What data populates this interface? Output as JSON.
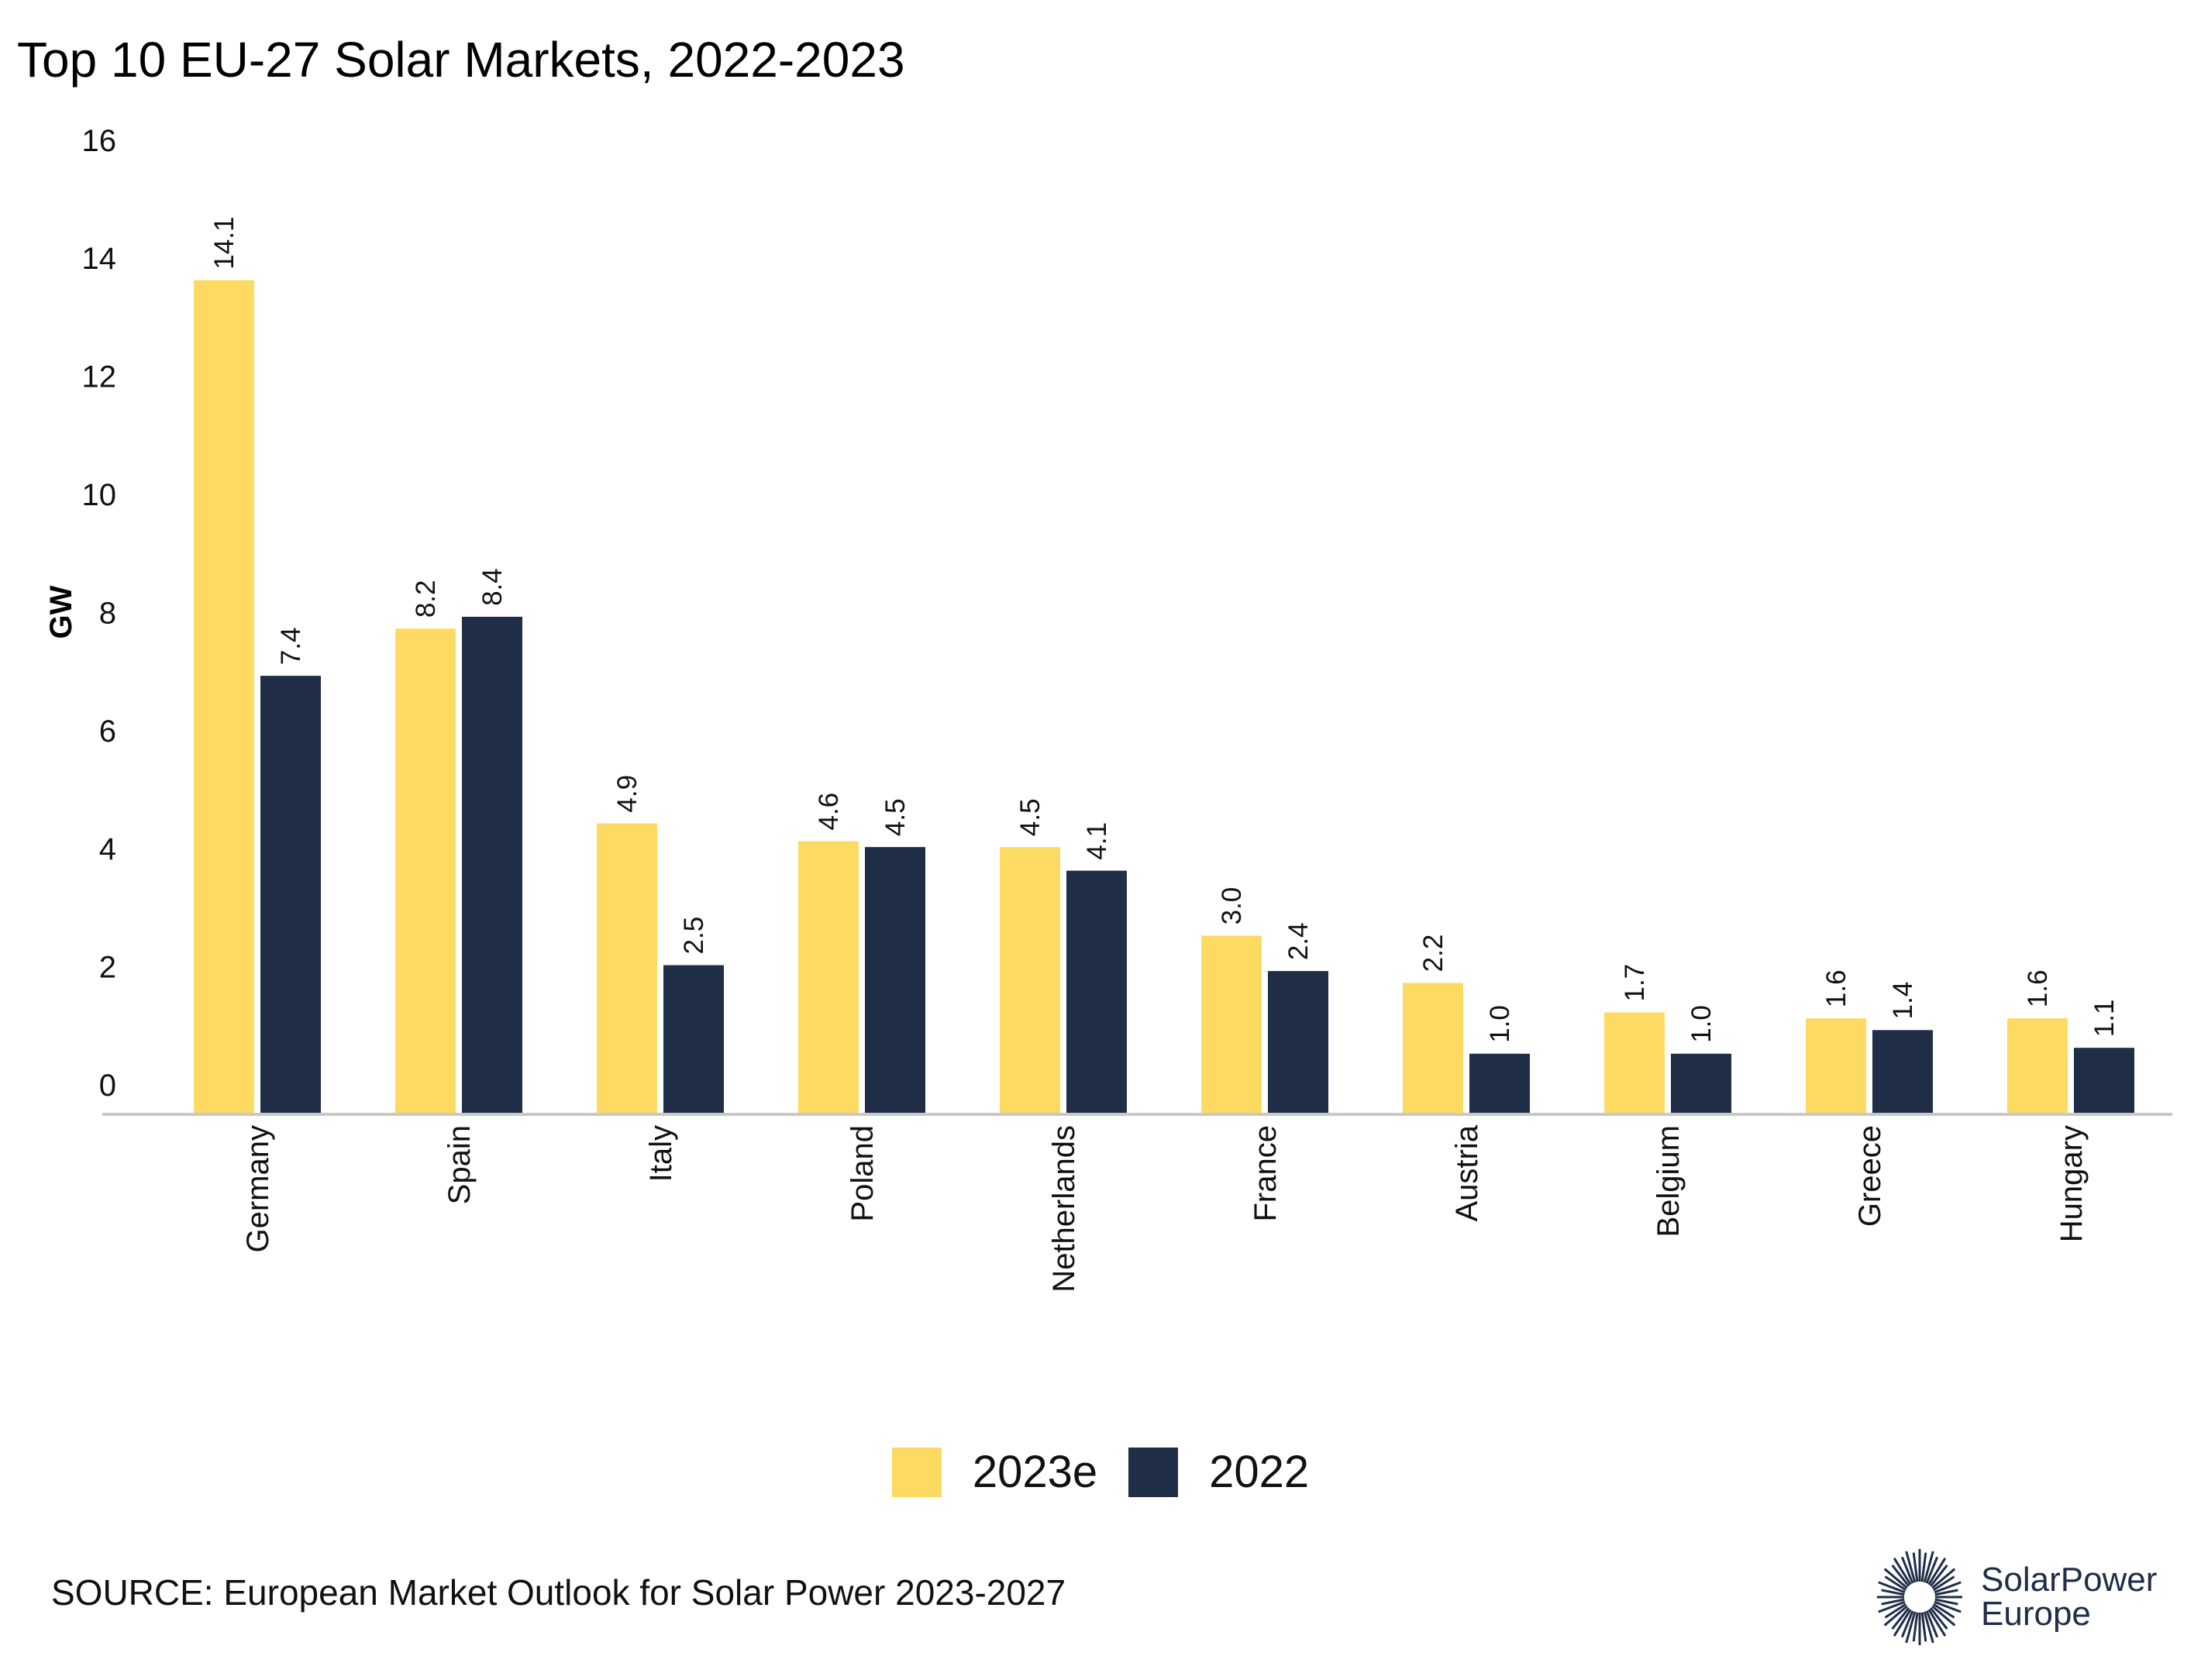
{
  "chart_data": {
    "type": "bar",
    "title": "Top 10 EU-27 Solar Markets, 2022-2023",
    "xlabel": "",
    "ylabel": "GW",
    "ylim": [
      0,
      16
    ],
    "yticks": [
      0,
      2,
      4,
      6,
      8,
      10,
      12,
      14,
      16
    ],
    "grid": false,
    "legend_position": "bottom",
    "categories": [
      "Germany",
      "Spain",
      "Italy",
      "Poland",
      "Netherlands",
      "France",
      "Austria",
      "Belgium",
      "Greece",
      "Hungary"
    ],
    "series": [
      {
        "name": "2023e",
        "color": "#fddb63",
        "values": [
          14.1,
          8.2,
          4.9,
          4.6,
          4.5,
          3.0,
          2.2,
          1.7,
          1.6,
          1.6
        ]
      },
      {
        "name": "2022",
        "color": "#1f2d47",
        "values": [
          7.4,
          8.4,
          2.5,
          4.5,
          4.1,
          2.4,
          1.0,
          1.0,
          1.4,
          1.1
        ]
      }
    ]
  },
  "source": "SOURCE: European Market Outlook for Solar Power 2023-2027",
  "logo": {
    "line1": "SolarPower",
    "line2": "Europe",
    "color": "#1f2d47"
  }
}
